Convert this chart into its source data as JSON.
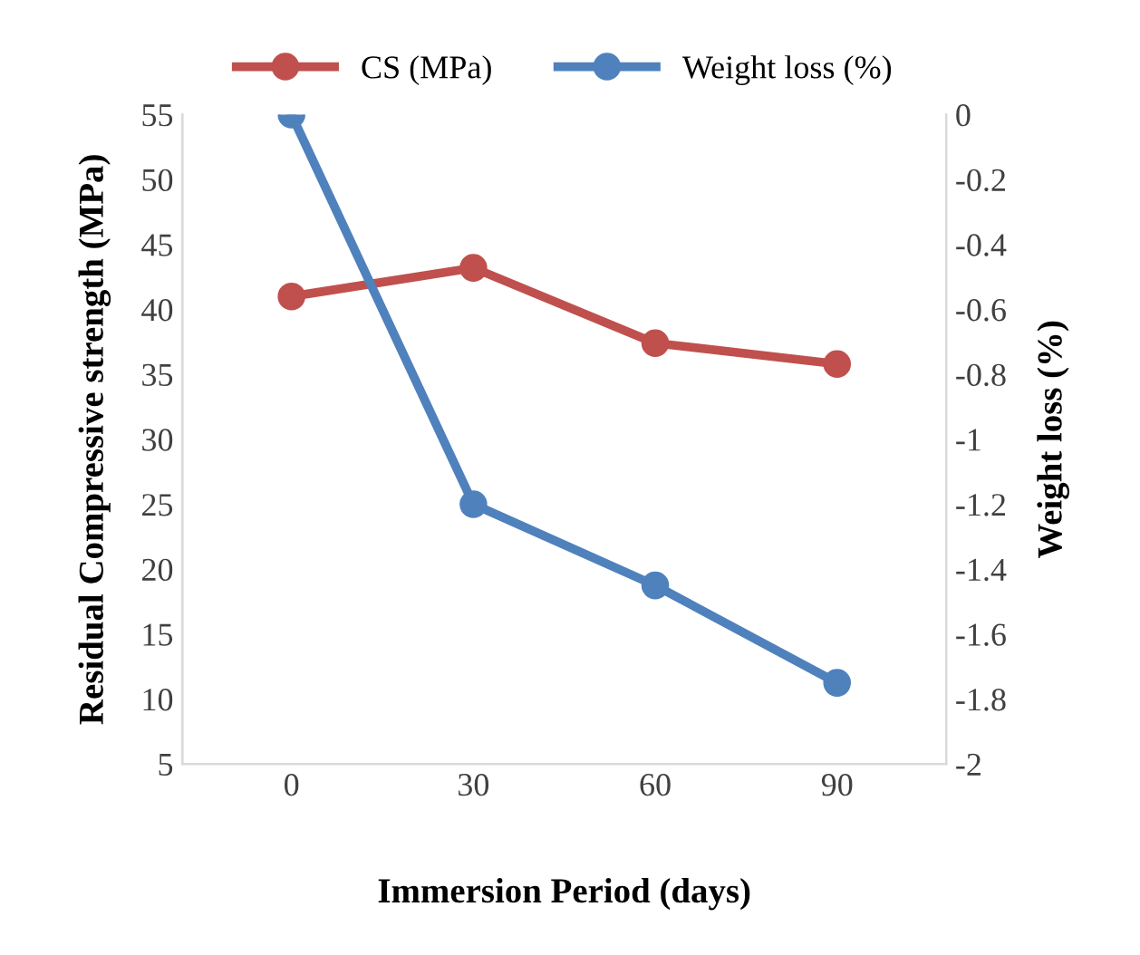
{
  "chart_data": {
    "type": "line",
    "xlabel": "Immersion Period (days)",
    "ylabel": "Residual Compressive strength (MPa)",
    "y2label": "Weight loss (%)",
    "categories": [
      "0",
      "30",
      "60",
      "90"
    ],
    "series": [
      {
        "name": "CS (MPa)",
        "color": "#c0504d",
        "values": [
          41.0,
          43.2,
          37.4,
          35.8
        ]
      },
      {
        "name": "Weight loss (%)",
        "color": "#4f81bd",
        "axis": "y2",
        "values": [
          0,
          -1.2,
          -1.45,
          -1.75
        ]
      }
    ],
    "ylim": [
      5,
      55
    ],
    "yticks": [
      5,
      10,
      15,
      20,
      25,
      30,
      35,
      40,
      45,
      50,
      55
    ],
    "y2lim": [
      -2,
      0
    ],
    "y2ticks": [
      -2,
      -1.8,
      -1.6,
      -1.4,
      -1.2,
      -1,
      -0.8,
      -0.6,
      -0.4,
      -0.2,
      0
    ],
    "marker": "circle",
    "line_style": "solid",
    "legend": "top",
    "grid": false
  }
}
